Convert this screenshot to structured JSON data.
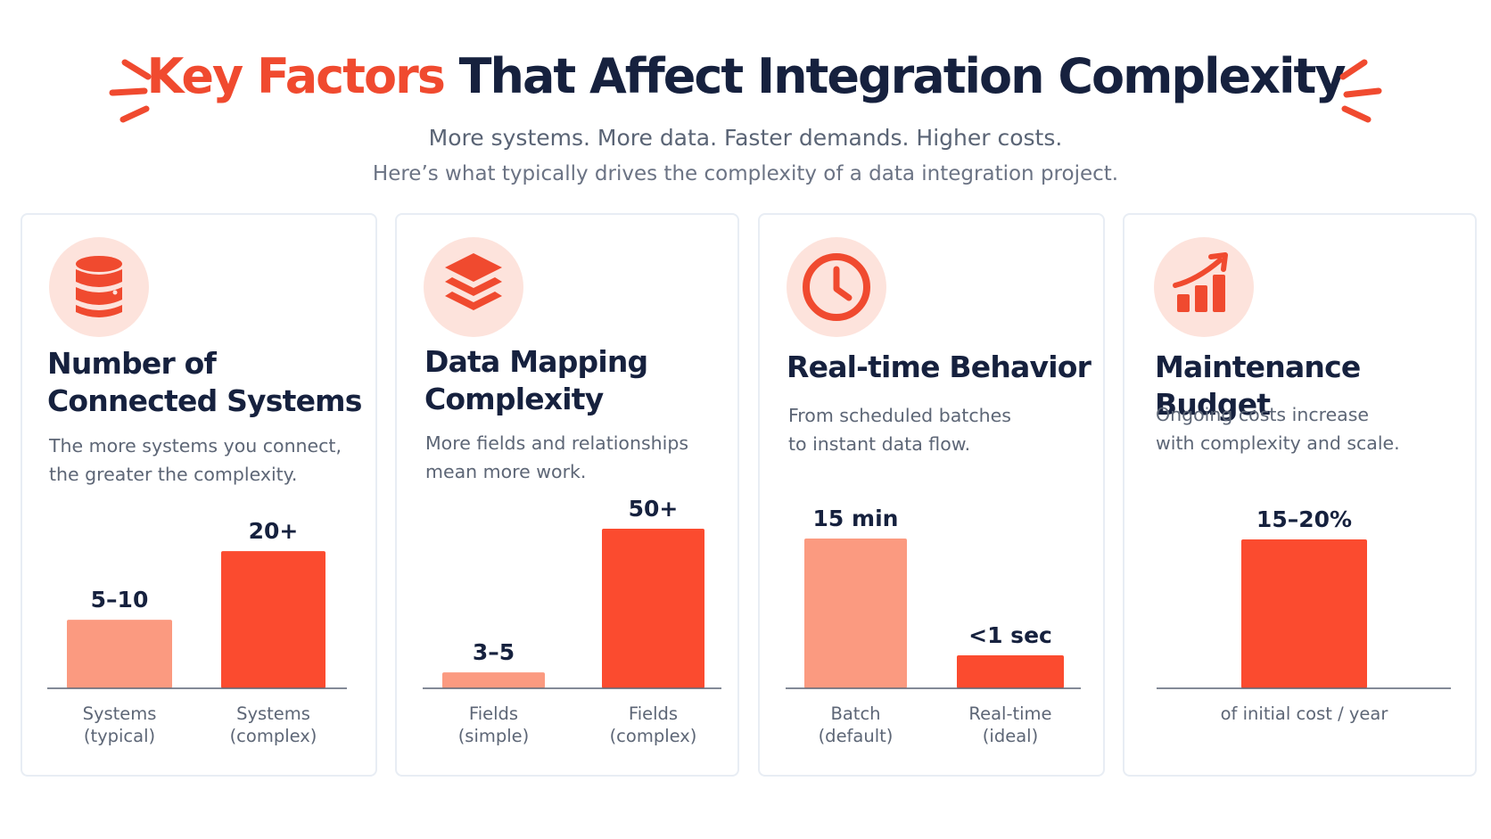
{
  "header": {
    "title_accent": "Key Factors",
    "title_rest": " That Affect Integration Complexity",
    "subtitle_line1": "More systems. More data. Faster demands. Higher costs.",
    "subtitle_line2": "Here’s what typically drives the complexity of a data integration project."
  },
  "colors": {
    "accent": "#f04a2f",
    "bar_light": "#fb9a80",
    "bar_dark": "#fb4b2f",
    "icon_bg": "#fde3dc",
    "title": "#16213e",
    "baseline": "#5a6475"
  },
  "cards": [
    {
      "icon": "database-icon",
      "title_line1": "Number of",
      "title_line2": "Connected Systems",
      "desc_line1": "The more systems you connect,",
      "desc_line2": "the greater the complexity."
    },
    {
      "icon": "layers-icon",
      "title_line1": "Data Mapping",
      "title_line2": "Complexity",
      "desc_line1": "More fields and relationships",
      "desc_line2": "mean more work."
    },
    {
      "icon": "clock-icon",
      "title_line1": "Real-time Behavior",
      "title_line2": "",
      "desc_line1": "From scheduled batches",
      "desc_line2": "to instant data flow."
    },
    {
      "icon": "growth-chart-icon",
      "title_line1": "Maintenance Budget",
      "title_line2": "",
      "desc_line1": "Ongoing costs increase",
      "desc_line2": "with complexity and scale."
    }
  ],
  "chart_data": [
    {
      "type": "bar",
      "categories": [
        [
          "Systems",
          "(typical)"
        ],
        [
          "Systems",
          "(complex)"
        ]
      ],
      "value_labels": [
        "5–10",
        "20+"
      ],
      "values": [
        10,
        20
      ],
      "ylim": [
        0,
        26
      ]
    },
    {
      "type": "bar",
      "categories": [
        [
          "Fields",
          "(simple)"
        ],
        [
          "Fields",
          "(complex)"
        ]
      ],
      "value_labels": [
        "3–5",
        "50+"
      ],
      "values": [
        5,
        50
      ],
      "ylim": [
        0,
        50
      ]
    },
    {
      "type": "bar",
      "categories": [
        [
          "Batch",
          "(default)"
        ],
        [
          "Real-time",
          "(ideal)"
        ]
      ],
      "value_labels": [
        "15 min",
        "<1 sec"
      ],
      "values": [
        15,
        3.3
      ],
      "ylim": [
        0,
        15
      ]
    },
    {
      "type": "bar",
      "categories": [
        [
          "of initial cost / year"
        ]
      ],
      "value_labels": [
        "15–20%"
      ],
      "values": [
        20
      ],
      "ylim": [
        0,
        20
      ]
    }
  ]
}
